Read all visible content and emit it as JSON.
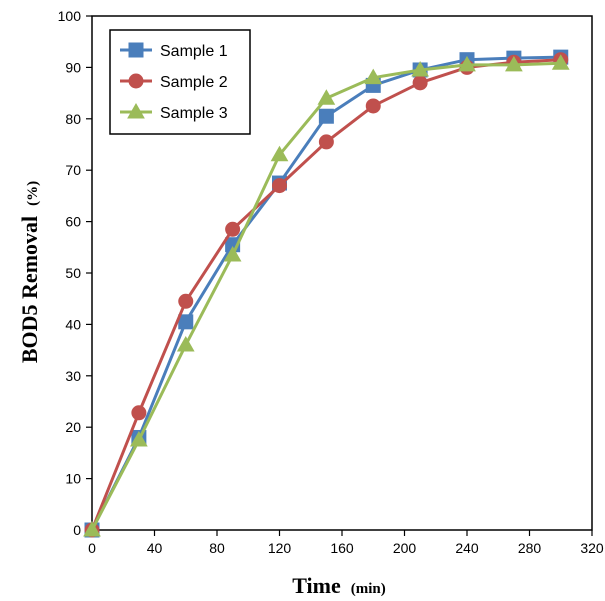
{
  "chart_data": {
    "type": "line",
    "xlabel": "Time",
    "xlabel_unit": "(min)",
    "ylabel": "BOD5 Removal",
    "ylabel_unit": "(%)",
    "xlim": [
      0,
      320
    ],
    "ylim": [
      0,
      100
    ],
    "xticks": [
      0,
      40,
      80,
      120,
      160,
      200,
      240,
      280,
      320
    ],
    "yticks": [
      0,
      10,
      20,
      30,
      40,
      50,
      60,
      70,
      80,
      90,
      100
    ],
    "grid": false,
    "legend_position": "top-left",
    "x": [
      0,
      30,
      60,
      90,
      120,
      150,
      180,
      210,
      240,
      270,
      300
    ],
    "series": [
      {
        "name": "Sample 1",
        "color": "#4a7ebb",
        "marker": "square",
        "values": [
          0,
          18,
          40.5,
          55.5,
          67.5,
          80.5,
          86.5,
          89.5,
          91.5,
          91.8,
          92
        ]
      },
      {
        "name": "Sample 2",
        "color": "#c0504d",
        "marker": "circle",
        "values": [
          0,
          22.8,
          44.5,
          58.5,
          67,
          75.5,
          82.5,
          87,
          90,
          91,
          91.5
        ]
      },
      {
        "name": "Sample 3",
        "color": "#9bbb59",
        "marker": "triangle",
        "values": [
          0,
          17.5,
          36,
          53.5,
          73,
          84,
          88,
          89.5,
          90.5,
          90.5,
          90.8
        ]
      }
    ]
  }
}
